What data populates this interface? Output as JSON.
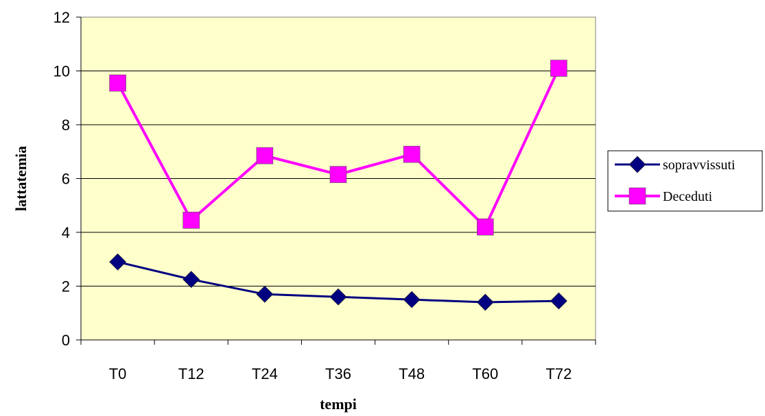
{
  "chart_data": {
    "type": "line",
    "xlabel": "tempi",
    "ylabel": "lattatemia",
    "categories": [
      "T0",
      "T12",
      "T24",
      "T36",
      "T48",
      "T60",
      "T72"
    ],
    "ylim": [
      0,
      12
    ],
    "yticks": [
      0,
      2,
      4,
      6,
      8,
      10,
      12
    ],
    "grid": true,
    "legend_position": "right",
    "plot_background": "#FFFFCC",
    "series": [
      {
        "name": "sopravvissuti",
        "marker": "diamond",
        "color": "#000080",
        "values": [
          2.9,
          2.25,
          1.7,
          1.6,
          1.5,
          1.4,
          1.45
        ]
      },
      {
        "name": "Deceduti",
        "marker": "square",
        "color": "#FF00FF",
        "values": [
          9.55,
          4.45,
          6.85,
          6.15,
          6.9,
          4.2,
          10.1
        ]
      }
    ]
  }
}
